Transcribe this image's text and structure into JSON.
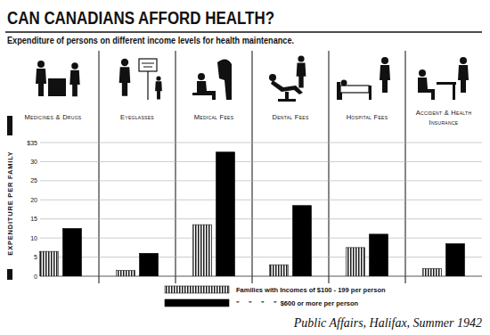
{
  "chart_data": {
    "type": "bar",
    "title": "CAN CANADIANS AFFORD HEALTH?",
    "subtitle": "Expenditure of persons on different income levels for health maintenance.",
    "y_label": "EXPENDITURE PER FAMILY",
    "source": "Public Affairs, Halifax, Summer 1942",
    "categories": [
      "Medicines & Drugs",
      "Eyeglasses",
      "Medical Fees",
      "Dental Fees",
      "Hospital Fees",
      "Accident & Health Insurance"
    ],
    "series": [
      {
        "name": "Families with Incomes of $100 - 199 per person",
        "color": "#1a1a1a",
        "values": [
          6.5,
          1.5,
          13.5,
          3,
          7.5,
          2
        ]
      },
      {
        "name": "\"     \"     \"     \"  $600 or more per person",
        "color": "#000000",
        "values": [
          12.5,
          6,
          32.5,
          18.5,
          11,
          8.5
        ]
      }
    ],
    "ylim": [
      0,
      35
    ],
    "yticks": [
      0,
      5,
      10,
      15,
      20,
      25,
      30,
      {
        "value": 35,
        "label": "$35"
      }
    ],
    "grid": true,
    "legend": "bottom"
  }
}
